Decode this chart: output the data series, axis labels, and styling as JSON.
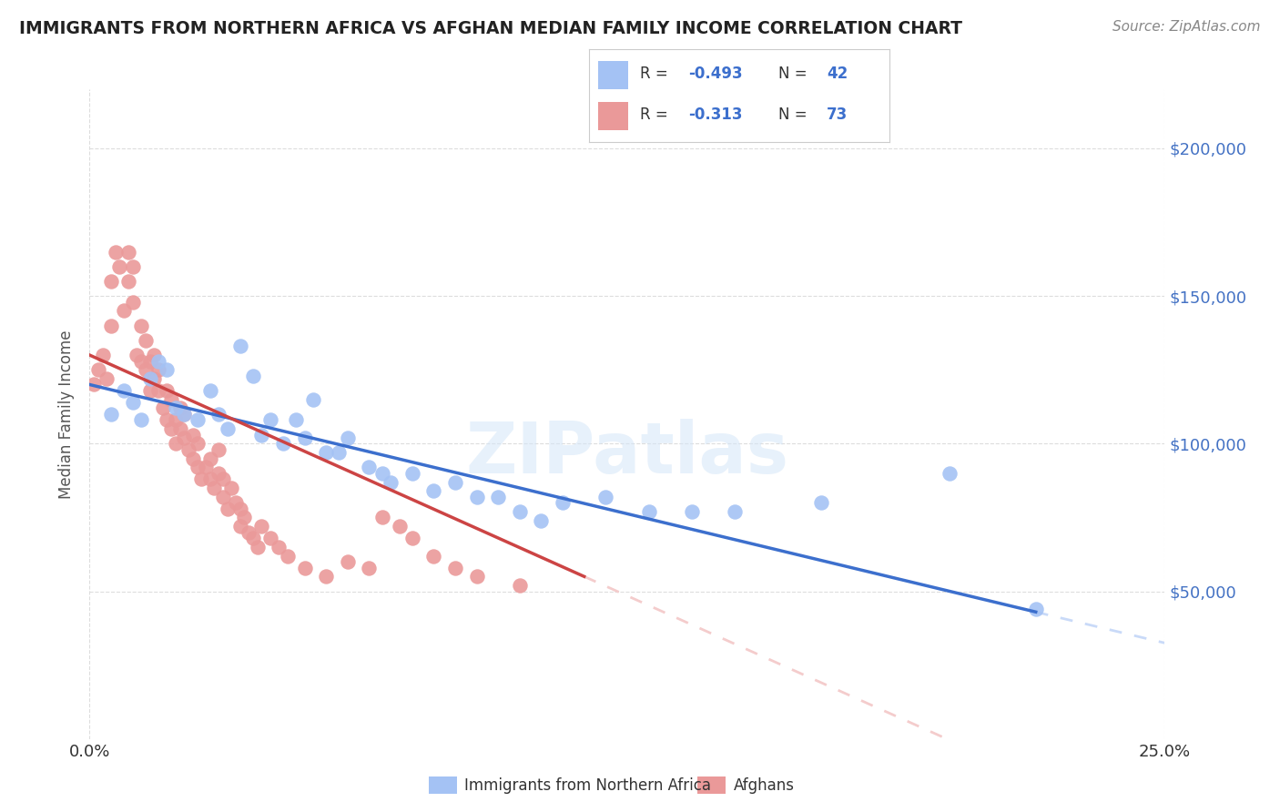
{
  "title": "IMMIGRANTS FROM NORTHERN AFRICA VS AFGHAN MEDIAN FAMILY INCOME CORRELATION CHART",
  "source": "Source: ZipAtlas.com",
  "ylabel": "Median Family Income",
  "xlim": [
    0.0,
    0.25
  ],
  "ylim": [
    0,
    220000
  ],
  "background_color": "#ffffff",
  "grid_color": "#dddddd",
  "watermark_text": "ZIPatlas",
  "legend_R_blue": "-0.493",
  "legend_N_blue": "42",
  "legend_R_pink": "-0.313",
  "legend_N_pink": "73",
  "blue_color": "#a4c2f4",
  "pink_color": "#ea9999",
  "trend_blue": "#3c6fcd",
  "trend_pink": "#cc4444",
  "trend_blue_ext_color": "#c9daf8",
  "trend_pink_ext_color": "#f4cccc",
  "ytick_labels": [
    "$50,000",
    "$100,000",
    "$150,000",
    "$200,000"
  ],
  "ytick_values": [
    50000,
    100000,
    150000,
    200000
  ],
  "legend_label_blue": "Immigrants from Northern Africa",
  "legend_label_pink": "Afghans",
  "blue_scatter_x": [
    0.005,
    0.008,
    0.01,
    0.012,
    0.014,
    0.016,
    0.018,
    0.02,
    0.022,
    0.025,
    0.028,
    0.03,
    0.032,
    0.035,
    0.038,
    0.04,
    0.042,
    0.045,
    0.048,
    0.05,
    0.052,
    0.055,
    0.058,
    0.06,
    0.065,
    0.068,
    0.07,
    0.075,
    0.08,
    0.085,
    0.09,
    0.095,
    0.1,
    0.105,
    0.11,
    0.12,
    0.13,
    0.14,
    0.15,
    0.17,
    0.2,
    0.22
  ],
  "blue_scatter_y": [
    110000,
    118000,
    114000,
    108000,
    122000,
    128000,
    125000,
    112000,
    110000,
    108000,
    118000,
    110000,
    105000,
    133000,
    123000,
    103000,
    108000,
    100000,
    108000,
    102000,
    115000,
    97000,
    97000,
    102000,
    92000,
    90000,
    87000,
    90000,
    84000,
    87000,
    82000,
    82000,
    77000,
    74000,
    80000,
    82000,
    77000,
    77000,
    77000,
    80000,
    90000,
    44000
  ],
  "pink_scatter_x": [
    0.001,
    0.002,
    0.003,
    0.004,
    0.005,
    0.005,
    0.006,
    0.007,
    0.008,
    0.009,
    0.009,
    0.01,
    0.01,
    0.011,
    0.012,
    0.012,
    0.013,
    0.013,
    0.014,
    0.014,
    0.015,
    0.015,
    0.016,
    0.016,
    0.017,
    0.018,
    0.018,
    0.019,
    0.019,
    0.02,
    0.02,
    0.021,
    0.021,
    0.022,
    0.022,
    0.023,
    0.024,
    0.024,
    0.025,
    0.025,
    0.026,
    0.027,
    0.028,
    0.028,
    0.029,
    0.03,
    0.03,
    0.031,
    0.031,
    0.032,
    0.033,
    0.034,
    0.035,
    0.035,
    0.036,
    0.037,
    0.038,
    0.039,
    0.04,
    0.042,
    0.044,
    0.046,
    0.05,
    0.055,
    0.06,
    0.065,
    0.068,
    0.072,
    0.075,
    0.08,
    0.085,
    0.09,
    0.1
  ],
  "pink_scatter_y": [
    120000,
    125000,
    130000,
    122000,
    140000,
    155000,
    165000,
    160000,
    145000,
    155000,
    165000,
    148000,
    160000,
    130000,
    128000,
    140000,
    125000,
    135000,
    118000,
    128000,
    122000,
    130000,
    118000,
    125000,
    112000,
    108000,
    118000,
    105000,
    115000,
    100000,
    108000,
    105000,
    112000,
    102000,
    110000,
    98000,
    95000,
    103000,
    92000,
    100000,
    88000,
    92000,
    88000,
    95000,
    85000,
    90000,
    98000,
    82000,
    88000,
    78000,
    85000,
    80000,
    72000,
    78000,
    75000,
    70000,
    68000,
    65000,
    72000,
    68000,
    65000,
    62000,
    58000,
    55000,
    60000,
    58000,
    75000,
    72000,
    68000,
    62000,
    58000,
    55000,
    52000
  ]
}
